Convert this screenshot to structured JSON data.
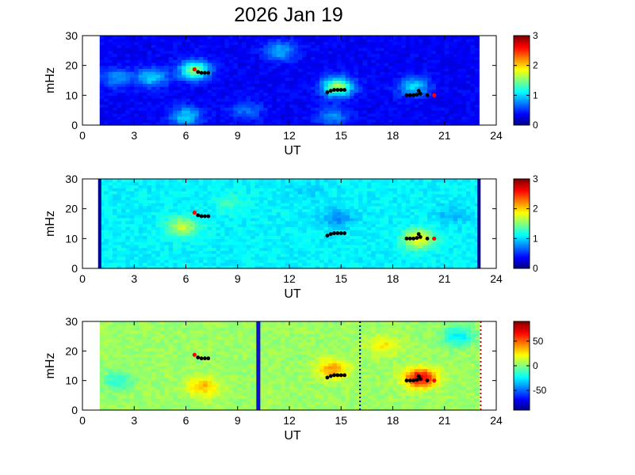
{
  "figure": {
    "title": "2026 Jan 19"
  },
  "chart_data": [
    {
      "type": "heatmap",
      "title": "2026 Jan 19",
      "xlabel": "UT",
      "ylabel": "mHz",
      "xlim": [
        0,
        24
      ],
      "ylim": [
        0,
        30
      ],
      "xticks": [
        0,
        3,
        6,
        9,
        12,
        15,
        18,
        21,
        24
      ],
      "yticks": [
        0,
        10,
        20,
        30
      ],
      "data_extent_ut": [
        1,
        23
      ],
      "colorbar": {
        "range": [
          0,
          3
        ],
        "ticks": [
          0,
          1,
          2,
          3
        ],
        "colormap": "jet"
      },
      "background_level": 0.35,
      "blobs": [
        {
          "ut": 6.5,
          "mhz": 18.5,
          "value": 1.5
        },
        {
          "ut": 4.0,
          "mhz": 16,
          "value": 1.0
        },
        {
          "ut": 11.5,
          "mhz": 25,
          "value": 0.9
        },
        {
          "ut": 14.8,
          "mhz": 13,
          "value": 1.6
        },
        {
          "ut": 14.5,
          "mhz": 3,
          "value": 0.8
        },
        {
          "ut": 9.5,
          "mhz": 5,
          "value": 0.7
        },
        {
          "ut": 6.0,
          "mhz": 3,
          "value": 1.0
        },
        {
          "ut": 19.2,
          "mhz": 13,
          "value": 1.0
        },
        {
          "ut": 2.0,
          "mhz": 16,
          "value": 0.8
        }
      ],
      "markers": {
        "black": [
          [
            6.7,
            17.8
          ],
          [
            6.9,
            17.5
          ],
          [
            7.1,
            17.5
          ],
          [
            7.3,
            17.5
          ],
          [
            14.2,
            11
          ],
          [
            14.4,
            11.5
          ],
          [
            14.6,
            11.8
          ],
          [
            14.8,
            11.8
          ],
          [
            15.0,
            11.8
          ],
          [
            15.2,
            11.8
          ],
          [
            18.8,
            10
          ],
          [
            19.0,
            10
          ],
          [
            19.2,
            10
          ],
          [
            19.4,
            10.2
          ],
          [
            19.6,
            10.5
          ],
          [
            19.5,
            11.5
          ],
          [
            20.0,
            10
          ]
        ],
        "red": [
          [
            6.5,
            18.7
          ],
          [
            20.4,
            10
          ]
        ]
      }
    },
    {
      "type": "heatmap",
      "xlabel": "UT",
      "ylabel": "mHz",
      "xlim": [
        0,
        24
      ],
      "ylim": [
        0,
        30
      ],
      "xticks": [
        0,
        3,
        6,
        9,
        12,
        15,
        18,
        21,
        24
      ],
      "yticks": [
        0,
        10,
        20,
        30
      ],
      "data_extent_ut": [
        1,
        23
      ],
      "colorbar": {
        "range": [
          0,
          3
        ],
        "ticks": [
          0,
          1,
          2,
          3
        ],
        "colormap": "jet"
      },
      "background_level": 1.1,
      "blobs": [
        {
          "ut": 5.8,
          "mhz": 14,
          "value": 1.7
        },
        {
          "ut": 19.5,
          "mhz": 10,
          "value": 1.9
        },
        {
          "ut": 14.8,
          "mhz": 17,
          "value": 0.8
        },
        {
          "ut": 21.5,
          "mhz": 18,
          "value": 0.9
        },
        {
          "ut": 8.5,
          "mhz": 22,
          "value": 1.3
        },
        {
          "ut": 13.0,
          "mhz": 26,
          "value": 1.0
        }
      ],
      "markers": {
        "black": [
          [
            6.7,
            17.8
          ],
          [
            6.9,
            17.5
          ],
          [
            7.1,
            17.5
          ],
          [
            7.3,
            17.5
          ],
          [
            14.2,
            11
          ],
          [
            14.4,
            11.5
          ],
          [
            14.6,
            11.8
          ],
          [
            14.8,
            11.8
          ],
          [
            15.0,
            11.8
          ],
          [
            15.2,
            11.8
          ],
          [
            18.8,
            10
          ],
          [
            19.0,
            10
          ],
          [
            19.2,
            10
          ],
          [
            19.4,
            10.2
          ],
          [
            19.6,
            10.5
          ],
          [
            19.5,
            11.5
          ],
          [
            20.0,
            10
          ]
        ],
        "red": [
          [
            6.5,
            18.7
          ],
          [
            20.4,
            10
          ]
        ]
      },
      "edge_bars_ut": [
        1,
        23
      ]
    },
    {
      "type": "heatmap",
      "xlabel": "UT",
      "ylabel": "mHz",
      "xlim": [
        0,
        24
      ],
      "ylim": [
        0,
        30
      ],
      "xticks": [
        0,
        3,
        6,
        9,
        12,
        15,
        18,
        21,
        24
      ],
      "yticks": [
        0,
        10,
        20,
        30
      ],
      "data_extent_ut": [
        1,
        23
      ],
      "colorbar": {
        "range": [
          -90,
          90
        ],
        "ticks": [
          50,
          0,
          -50
        ],
        "colormap": "jet"
      },
      "background_level": 5,
      "blobs": [
        {
          "ut": 19.6,
          "mhz": 11,
          "value": 75
        },
        {
          "ut": 14.5,
          "mhz": 14,
          "value": 40
        },
        {
          "ut": 7.0,
          "mhz": 8,
          "value": 35
        },
        {
          "ut": 21.8,
          "mhz": 25,
          "value": -25
        },
        {
          "ut": 2.0,
          "mhz": 10,
          "value": -15
        },
        {
          "ut": 17.5,
          "mhz": 22,
          "value": 25
        }
      ],
      "markers": {
        "black": [
          [
            6.7,
            17.8
          ],
          [
            6.9,
            17.5
          ],
          [
            7.1,
            17.5
          ],
          [
            7.3,
            17.5
          ],
          [
            14.2,
            11
          ],
          [
            14.4,
            11.5
          ],
          [
            14.6,
            11.8
          ],
          [
            14.8,
            11.8
          ],
          [
            15.0,
            11.8
          ],
          [
            15.2,
            11.8
          ],
          [
            18.8,
            10
          ],
          [
            19.0,
            10
          ],
          [
            19.2,
            10
          ],
          [
            19.4,
            10.2
          ],
          [
            19.6,
            10.5
          ],
          [
            19.5,
            11.5
          ],
          [
            20.0,
            10
          ]
        ],
        "red": [
          [
            6.5,
            18.7
          ],
          [
            20.4,
            10
          ]
        ]
      },
      "vertical_bar_ut": 10.2,
      "dotted_line_ut": 16.1,
      "red_dotted_line_ut": 23.1
    }
  ]
}
